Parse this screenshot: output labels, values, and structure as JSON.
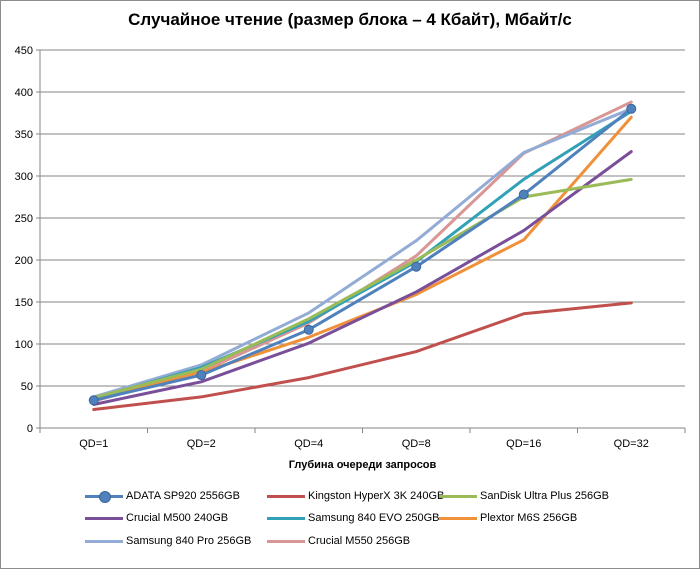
{
  "chart_data": {
    "type": "line",
    "title": "Случайное чтение (размер блока – 4 Кбайт), Мбайт/с",
    "xlabel": "Глубина очереди запросов",
    "ylabel": "",
    "categories": [
      "QD=1",
      "QD=2",
      "QD=4",
      "QD=8",
      "QD=16",
      "QD=32"
    ],
    "ylim": [
      0,
      450
    ],
    "yticks": [
      0,
      50,
      100,
      150,
      200,
      250,
      300,
      350,
      400,
      450
    ],
    "grid": "horizontal",
    "legend_position": "bottom",
    "series": [
      {
        "name": "ADATA SP920 2556GB",
        "color": "#4f81bd",
        "marker": "circle",
        "values": [
          33,
          63,
          117,
          192,
          278,
          380
        ]
      },
      {
        "name": "Kingston HyperX 3K 240GB",
        "color": "#c0504d",
        "values": [
          22,
          37,
          60,
          91,
          136,
          149
        ]
      },
      {
        "name": "SanDisk Ultra Plus 256GB",
        "color": "#9bbb59",
        "values": [
          36,
          70,
          130,
          200,
          275,
          296
        ]
      },
      {
        "name": "Crucial M500 240GB",
        "color": "#7a4f9a",
        "values": [
          28,
          55,
          101,
          162,
          235,
          329
        ]
      },
      {
        "name": "Samsung 840 EVO 250GB",
        "color": "#31a1b8",
        "values": [
          35,
          72,
          127,
          198,
          296,
          377
        ]
      },
      {
        "name": "Plextor M6S 256GB",
        "color": "#f0913a",
        "values": [
          34,
          66,
          108,
          159,
          224,
          370
        ]
      },
      {
        "name": "Samsung 840 Pro 256GB",
        "color": "#93acd6",
        "values": [
          37,
          75,
          137,
          223,
          328,
          380
        ]
      },
      {
        "name": "Crucial M550 256GB",
        "color": "#d99694",
        "values": [
          32,
          67,
          125,
          205,
          327,
          388
        ]
      }
    ]
  }
}
